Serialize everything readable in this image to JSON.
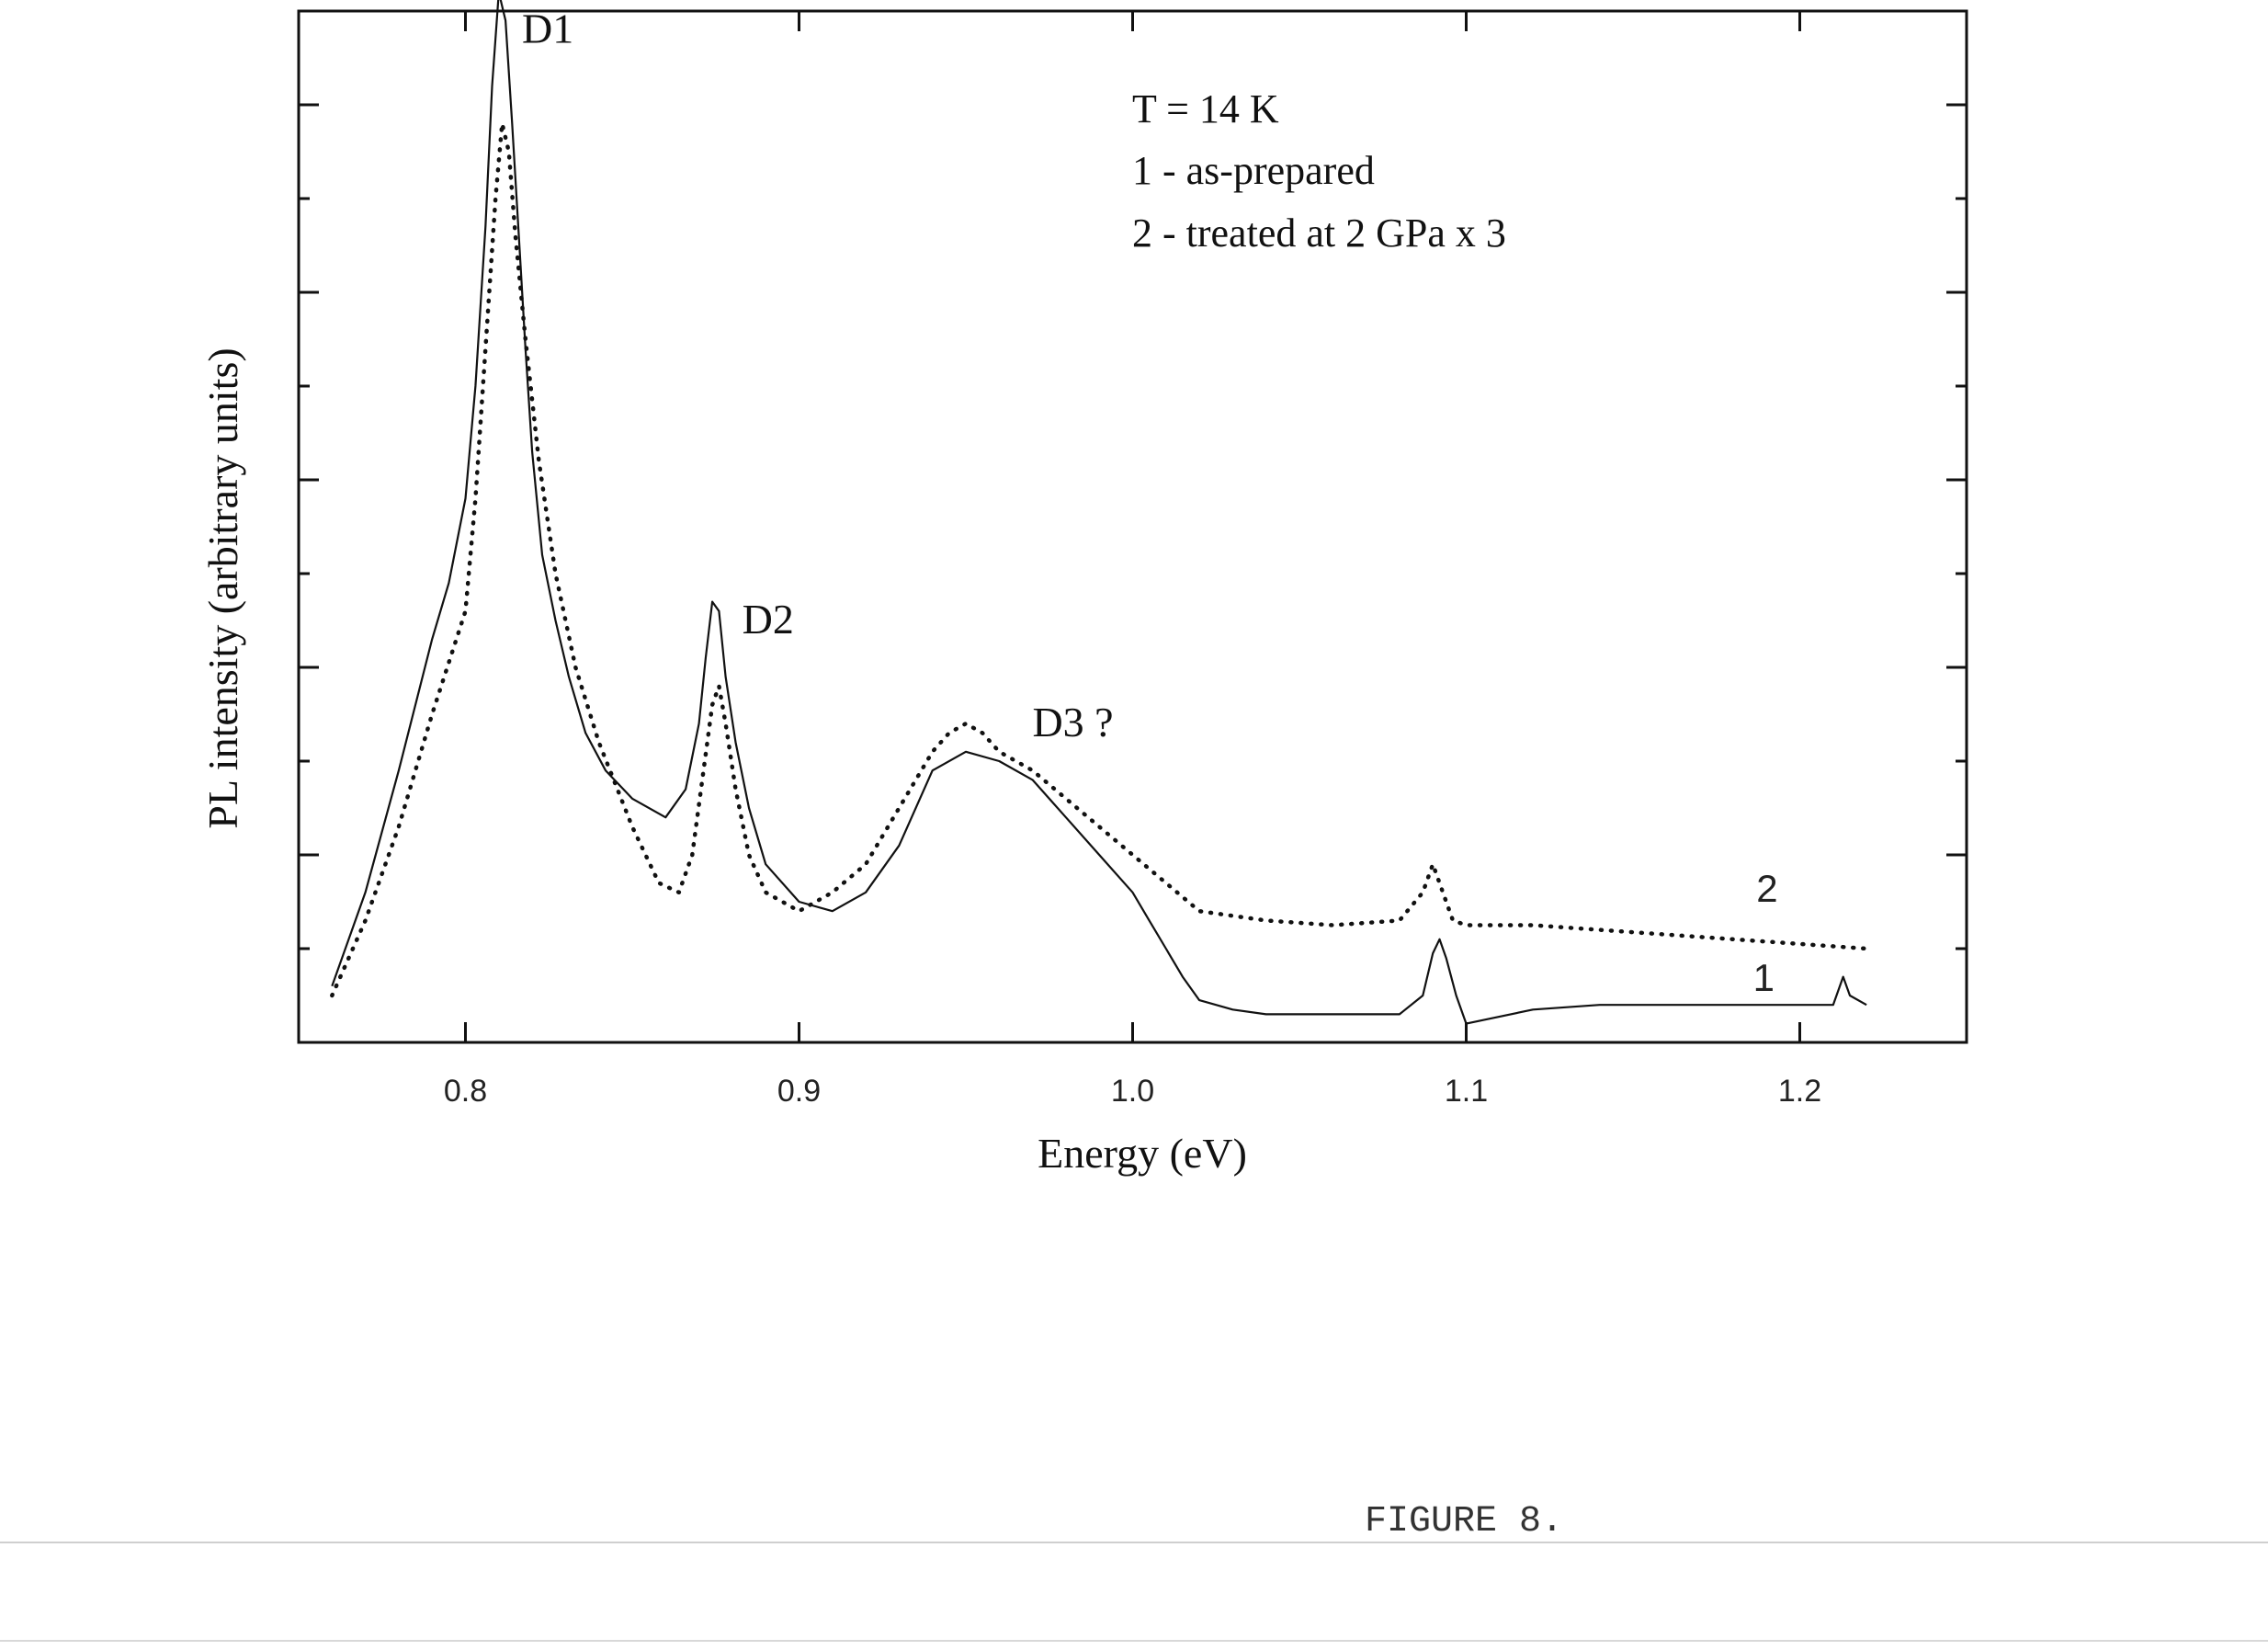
{
  "chart_data": {
    "type": "line",
    "title": "",
    "xlabel": "Energy (eV)",
    "ylabel": "PL intensity (arbitrary units)",
    "xlim": [
      0.75,
      1.25
    ],
    "ylim": [
      0,
      11
    ],
    "x_ticks": [
      {
        "value": 0.8,
        "label": "0.8"
      },
      {
        "value": 0.9,
        "label": "0.9"
      },
      {
        "value": 1.0,
        "label": "1.0"
      },
      {
        "value": 1.1,
        "label": "1.1"
      },
      {
        "value": 1.2,
        "label": "1.2"
      }
    ],
    "y_tick_labels": "none",
    "grid": false,
    "legend_text": [
      "T = 14 K",
      "1 - as-prepared",
      "2 - treated at 2 GPa x 3"
    ],
    "legend_position": "top-right",
    "peak_labels": [
      {
        "text": "D1",
        "x": 0.812,
        "y": 10.8
      },
      {
        "text": "D2",
        "x": 0.878,
        "y": 4.5
      },
      {
        "text": "D3 ?",
        "x": 0.965,
        "y": 3.4
      }
    ],
    "curve_labels": [
      {
        "text": "2",
        "x": 1.187,
        "y": 1.5
      },
      {
        "text": "1",
        "x": 1.186,
        "y": 0.55
      }
    ],
    "series": [
      {
        "name": "1",
        "style": "solid",
        "x": [
          0.76,
          0.77,
          0.78,
          0.79,
          0.795,
          0.8,
          0.803,
          0.806,
          0.808,
          0.81,
          0.812,
          0.814,
          0.816,
          0.818,
          0.82,
          0.823,
          0.827,
          0.831,
          0.836,
          0.842,
          0.85,
          0.86,
          0.866,
          0.87,
          0.872,
          0.874,
          0.876,
          0.878,
          0.881,
          0.885,
          0.89,
          0.9,
          0.91,
          0.92,
          0.93,
          0.94,
          0.95,
          0.96,
          0.97,
          0.98,
          0.99,
          1.0,
          1.005,
          1.01,
          1.015,
          1.02,
          1.03,
          1.04,
          1.06,
          1.08,
          1.087,
          1.09,
          1.092,
          1.094,
          1.097,
          1.1,
          1.12,
          1.14,
          1.16,
          1.18,
          1.2,
          1.21,
          1.213,
          1.215,
          1.22
        ],
        "y": [
          0.6,
          1.6,
          2.9,
          4.3,
          4.9,
          5.8,
          7.0,
          8.7,
          10.2,
          11.2,
          10.9,
          9.8,
          8.6,
          7.4,
          6.3,
          5.2,
          4.5,
          3.9,
          3.3,
          2.9,
          2.6,
          2.4,
          2.7,
          3.4,
          4.1,
          4.7,
          4.6,
          3.9,
          3.2,
          2.5,
          1.9,
          1.5,
          1.4,
          1.6,
          2.1,
          2.9,
          3.1,
          3.0,
          2.8,
          2.4,
          2.0,
          1.6,
          1.3,
          1.0,
          0.7,
          0.45,
          0.35,
          0.3,
          0.3,
          0.3,
          0.5,
          0.95,
          1.1,
          0.9,
          0.5,
          0.2,
          0.35,
          0.4,
          0.4,
          0.4,
          0.4,
          0.4,
          0.7,
          0.5,
          0.4
        ]
      },
      {
        "name": "2",
        "style": "dotted",
        "x": [
          0.76,
          0.77,
          0.78,
          0.79,
          0.8,
          0.803,
          0.806,
          0.809,
          0.811,
          0.813,
          0.815,
          0.818,
          0.822,
          0.827,
          0.833,
          0.84,
          0.85,
          0.858,
          0.864,
          0.868,
          0.871,
          0.874,
          0.876,
          0.878,
          0.881,
          0.885,
          0.89,
          0.9,
          0.91,
          0.92,
          0.93,
          0.94,
          0.945,
          0.95,
          0.955,
          0.96,
          0.97,
          0.98,
          0.99,
          1.0,
          1.01,
          1.02,
          1.04,
          1.06,
          1.08,
          1.087,
          1.09,
          1.093,
          1.096,
          1.1,
          1.12,
          1.14,
          1.16,
          1.18,
          1.2,
          1.22
        ],
        "y": [
          0.5,
          1.3,
          2.3,
          3.5,
          4.6,
          5.8,
          7.4,
          9.0,
          9.8,
          9.5,
          8.6,
          7.5,
          6.2,
          5.0,
          4.0,
          3.2,
          2.3,
          1.7,
          1.6,
          2.0,
          2.8,
          3.6,
          3.8,
          3.4,
          2.7,
          2.0,
          1.6,
          1.4,
          1.6,
          1.9,
          2.5,
          3.1,
          3.3,
          3.4,
          3.3,
          3.1,
          2.9,
          2.6,
          2.3,
          2.0,
          1.7,
          1.4,
          1.3,
          1.25,
          1.3,
          1.6,
          1.9,
          1.6,
          1.3,
          1.25,
          1.25,
          1.2,
          1.15,
          1.1,
          1.05,
          1.0
        ]
      }
    ]
  },
  "figure_caption": "FIGURE 8."
}
